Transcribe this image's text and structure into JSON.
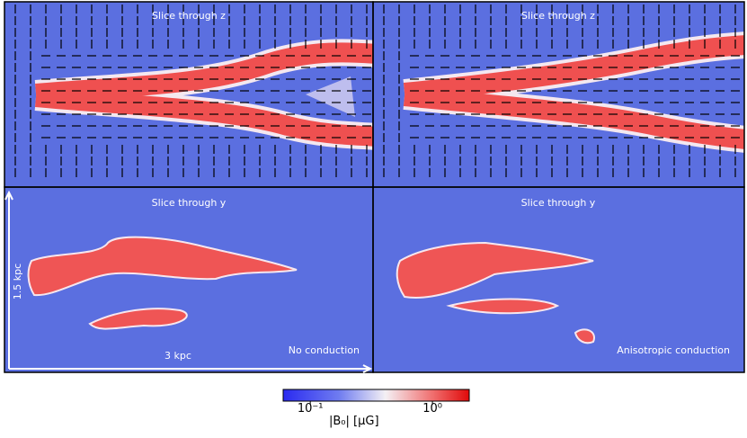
{
  "panels": [
    {
      "title": "Slice through z"
    },
    {
      "title": "Slice through z"
    },
    {
      "title": "Slice through y",
      "label": "No conduction"
    },
    {
      "title": "Slice through y",
      "label": "Anisotropic conduction"
    }
  ],
  "scale_bar": {
    "height": "1.5 kpc",
    "width": "3 kpc"
  },
  "colorbar": {
    "label": "|B₀| [μG]",
    "log": true,
    "lim": [
      0.06,
      2
    ],
    "ticks": [
      {
        "value": 0.1,
        "label": "10⁻¹"
      },
      {
        "value": 1,
        "label": "10⁰"
      }
    ]
  }
}
